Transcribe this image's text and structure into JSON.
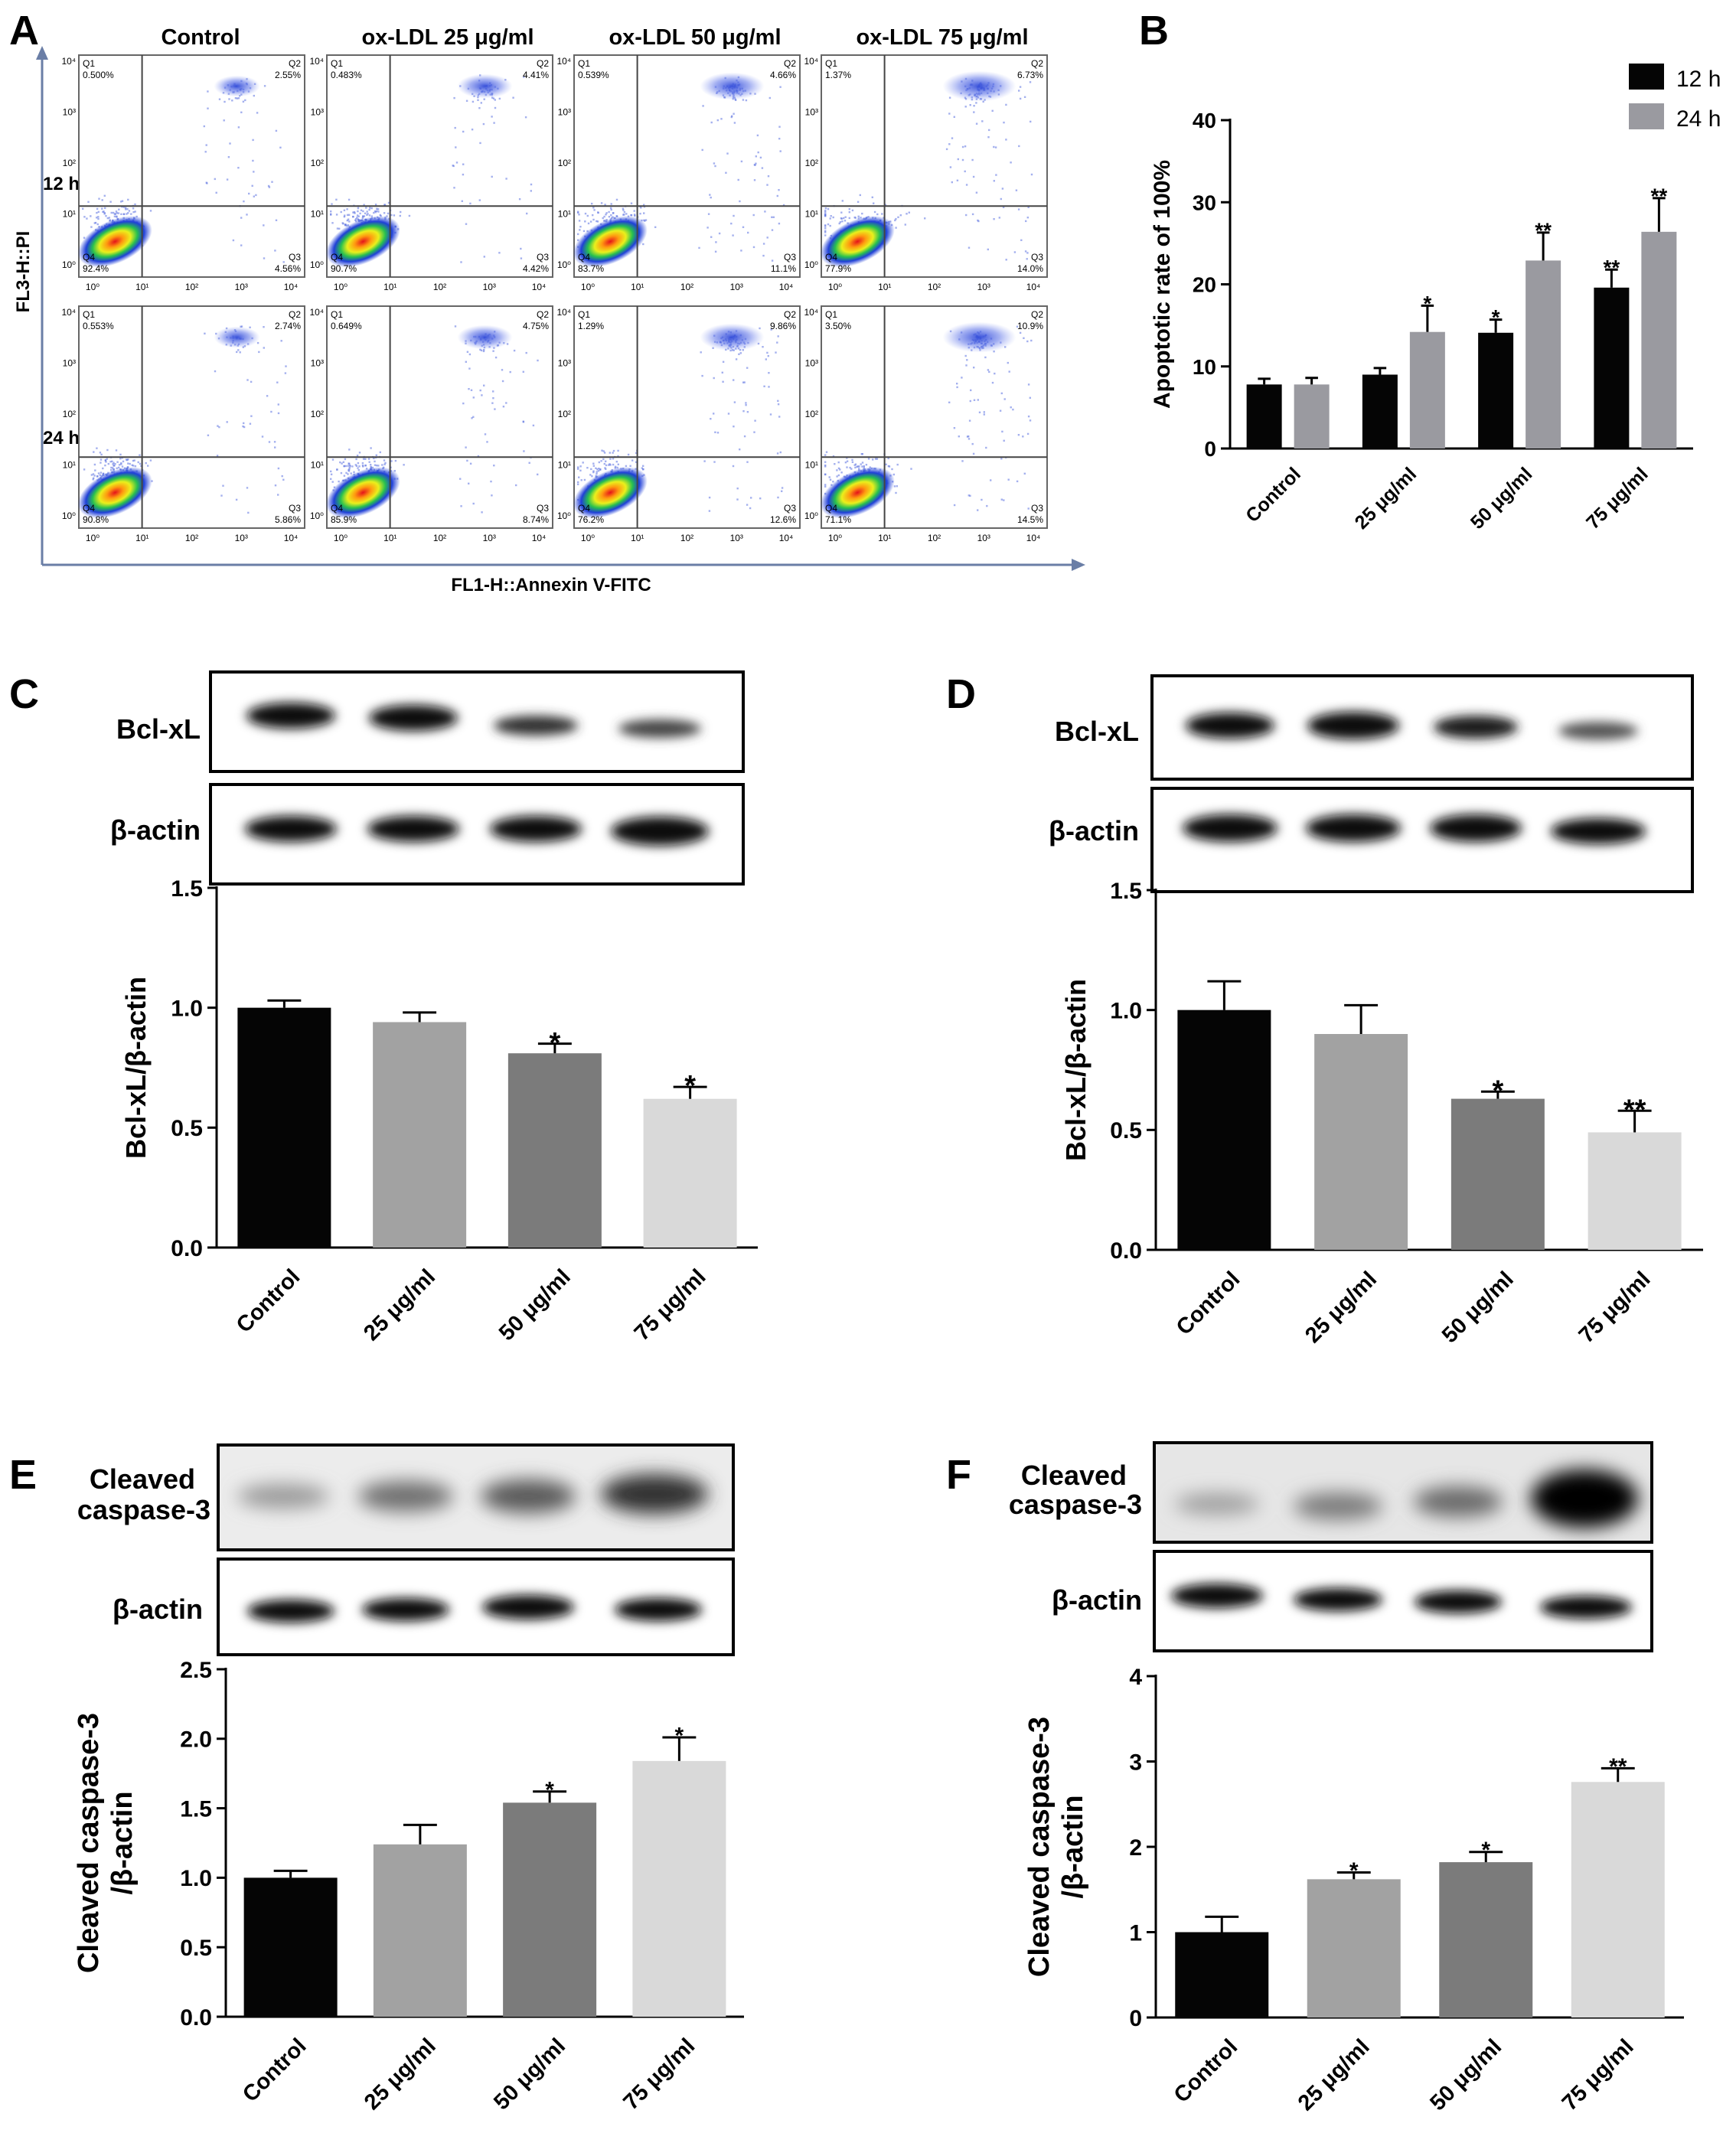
{
  "panel_letters": [
    "A",
    "B",
    "C",
    "D",
    "E",
    "F"
  ],
  "panel_a": {
    "columns": [
      "Control",
      "ox-LDL 25 μg/ml",
      "ox-LDL 50 μg/ml",
      "ox-LDL 75 μg/ml"
    ],
    "rows": [
      "12 h",
      "24 h"
    ],
    "ylabel": "FL3-H::PI",
    "xlabel": "FL1-H::Annexin V-FITC",
    "quadrant_labels": [
      "Q1",
      "Q2",
      "Q3",
      "Q4"
    ],
    "tick_labels": [
      "10⁰",
      "10¹",
      "10²",
      "10³",
      "10⁴"
    ],
    "plots": [
      {
        "q1": "0.500%",
        "q2": "2.55%",
        "q3": "4.56%",
        "q4": "92.4%"
      },
      {
        "q1": "0.483%",
        "q2": "4.41%",
        "q3": "4.42%",
        "q4": "90.7%"
      },
      {
        "q1": "0.539%",
        "q2": "4.66%",
        "q3": "11.1%",
        "q4": "83.7%"
      },
      {
        "q1": "1.37%",
        "q2": "6.73%",
        "q3": "14.0%",
        "q4": "77.9%"
      },
      {
        "q1": "0.553%",
        "q2": "2.74%",
        "q3": "5.86%",
        "q4": "90.8%"
      },
      {
        "q1": "0.649%",
        "q2": "4.75%",
        "q3": "8.74%",
        "q4": "85.9%"
      },
      {
        "q1": "1.29%",
        "q2": "9.86%",
        "q3": "12.6%",
        "q4": "76.2%"
      },
      {
        "q1": "3.50%",
        "q2": "10.9%",
        "q3": "14.5%",
        "q4": "71.1%"
      }
    ]
  },
  "western_blots": {
    "C": {
      "labels": [
        "Bcl-xL",
        "β-actin"
      ]
    },
    "D": {
      "labels": [
        "Bcl-xL",
        "β-actin"
      ]
    },
    "E": {
      "labels": [
        "Cleaved",
        "caspase-3",
        "β-actin"
      ]
    },
    "F": {
      "labels": [
        "Cleaved",
        "caspase-3",
        "β-actin"
      ]
    }
  },
  "colors": {
    "black_bar": "#050505",
    "dark_gray_bar": "#7b7b7b",
    "mid_gray_bar": "#a2a2a2",
    "light_gray_bar": "#d9d9d9",
    "series_24h": "#9a9aa0",
    "axis": "#000000",
    "flow_frame": "#6a7ea6"
  },
  "chart_data": [
    {
      "panel": "B",
      "type": "bar",
      "categories": [
        "Control",
        "25 μg/ml",
        "50 μg/ml",
        "75 μg/ml"
      ],
      "series": [
        {
          "name": "12 h",
          "values": [
            7.8,
            9.0,
            14.1,
            19.6
          ],
          "errors": [
            0.7,
            0.8,
            1.6,
            2.2
          ],
          "significance": [
            "",
            "",
            "*",
            "**"
          ]
        },
        {
          "name": "24 h",
          "values": [
            7.8,
            14.2,
            22.9,
            26.4
          ],
          "errors": [
            0.8,
            3.2,
            3.4,
            4.1
          ],
          "significance": [
            "",
            "*",
            "**",
            "**"
          ]
        }
      ],
      "ylabel": "Apoptotic rate of 100%",
      "ylim": [
        0,
        40
      ],
      "yticks": [
        0,
        10,
        20,
        30,
        40
      ],
      "legend": "top-right"
    },
    {
      "panel": "C",
      "type": "bar",
      "categories": [
        "Control",
        "25 μg/ml",
        "50 μg/ml",
        "75 μg/ml"
      ],
      "values": [
        1.0,
        0.94,
        0.81,
        0.62
      ],
      "errors": [
        0.03,
        0.04,
        0.04,
        0.05
      ],
      "significance": [
        "",
        "",
        "*",
        "*"
      ],
      "ylabel": "Bcl-xL/β-actin",
      "ylim": [
        0,
        1.5
      ],
      "yticks": [
        "0.0",
        "0.5",
        "1.0",
        "1.5"
      ]
    },
    {
      "panel": "D",
      "type": "bar",
      "categories": [
        "Control",
        "25 μg/ml",
        "50 μg/ml",
        "75 μg/ml"
      ],
      "values": [
        1.0,
        0.9,
        0.63,
        0.49
      ],
      "errors": [
        0.12,
        0.12,
        0.03,
        0.09
      ],
      "significance": [
        "",
        "",
        "*",
        "**"
      ],
      "ylabel": "Bcl-xL/β-actin",
      "ylim": [
        0,
        1.5
      ],
      "yticks": [
        "0.0",
        "0.5",
        "1.0",
        "1.5"
      ]
    },
    {
      "panel": "E",
      "type": "bar",
      "categories": [
        "Control",
        "25 μg/ml",
        "50 μg/ml",
        "75 μg/ml"
      ],
      "values": [
        1.0,
        1.24,
        1.54,
        1.84
      ],
      "errors": [
        0.05,
        0.14,
        0.08,
        0.17
      ],
      "significance": [
        "",
        "",
        "*",
        "*"
      ],
      "ylabel": "Cleaved caspase-3 /β-actin",
      "ylabel_lines": [
        "Cleaved caspase-3",
        "/β-actin"
      ],
      "ylim": [
        0,
        2.5
      ],
      "yticks": [
        "0.0",
        "0.5",
        "1.0",
        "1.5",
        "2.0",
        "2.5"
      ]
    },
    {
      "panel": "F",
      "type": "bar",
      "categories": [
        "Control",
        "25 μg/ml",
        "50 μg/ml",
        "75 μg/ml"
      ],
      "values": [
        1.0,
        1.62,
        1.82,
        2.76
      ],
      "errors": [
        0.18,
        0.08,
        0.12,
        0.16
      ],
      "significance": [
        "",
        "*",
        "*",
        "**"
      ],
      "ylabel": "Cleaved caspase-3 /β-actin",
      "ylabel_lines": [
        "Cleaved caspase-3",
        "/β-actin"
      ],
      "ylim": [
        0,
        4
      ],
      "yticks": [
        "0",
        "1",
        "2",
        "3",
        "4"
      ]
    }
  ]
}
